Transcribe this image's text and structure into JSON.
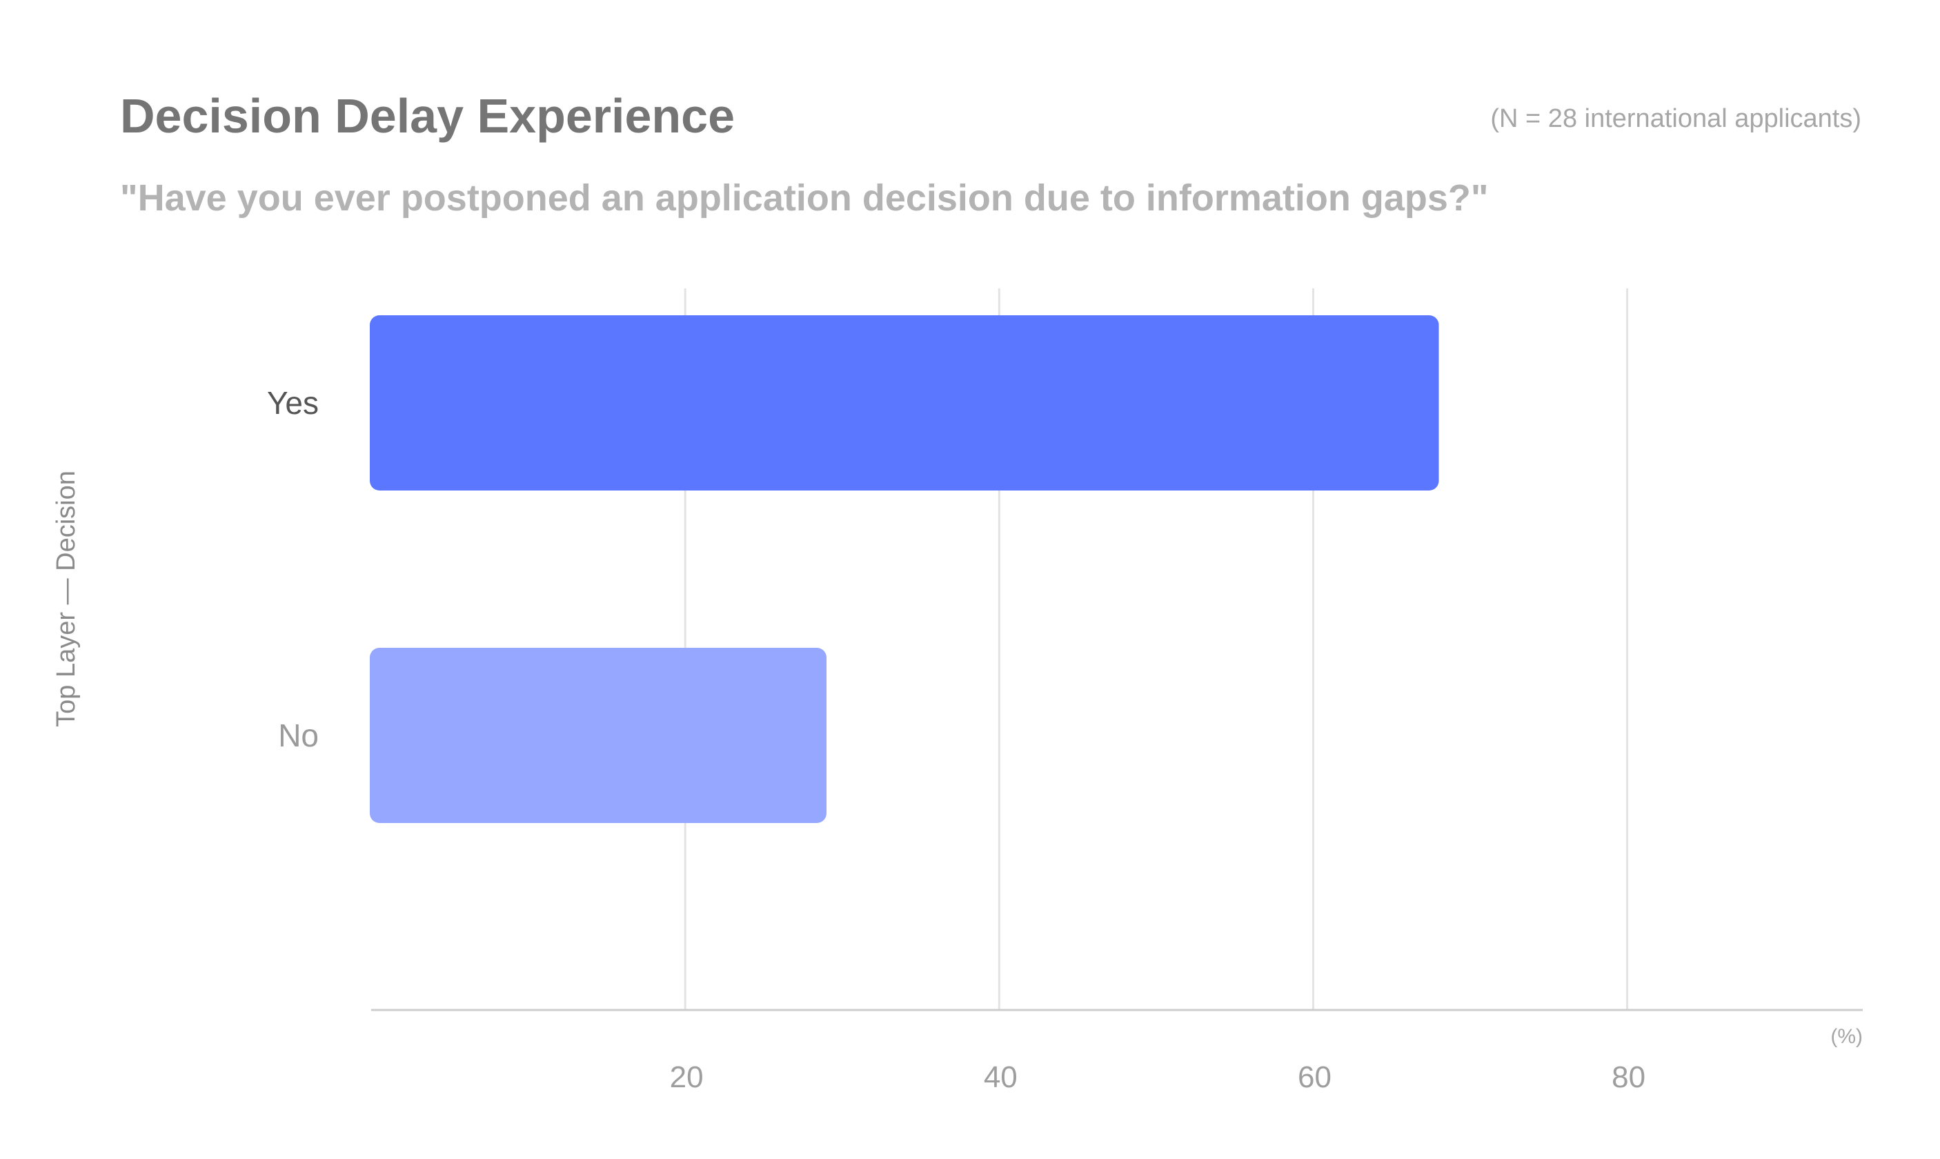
{
  "chart_data": {
    "type": "bar",
    "orientation": "horizontal",
    "title": "Decision Delay Experience",
    "subtitle": "\"Have you ever postponed an application decision due to information gaps?\"",
    "note": "(N = 28 international applicants)",
    "ylabel": "Top Layer — Decision",
    "x_unit": "(%)",
    "categories": [
      "Yes",
      "No"
    ],
    "values": [
      68,
      29
    ],
    "xlim": [
      0,
      95
    ],
    "x_ticks": [
      20,
      40,
      60,
      80
    ],
    "grid": true,
    "bar_colors": [
      "#5b76ff",
      "#96a7ff"
    ],
    "category_label_colors": [
      "#555555",
      "#9a9a9a"
    ]
  },
  "colors": {
    "title": "#757575",
    "subtitle": "#b3b3b3",
    "note": "#a6a6a6",
    "tick_label": "#9e9e9e",
    "axis_title": "#8a8a8a",
    "gridline": "#e3e3e3",
    "axis_line": "#cccccc"
  }
}
